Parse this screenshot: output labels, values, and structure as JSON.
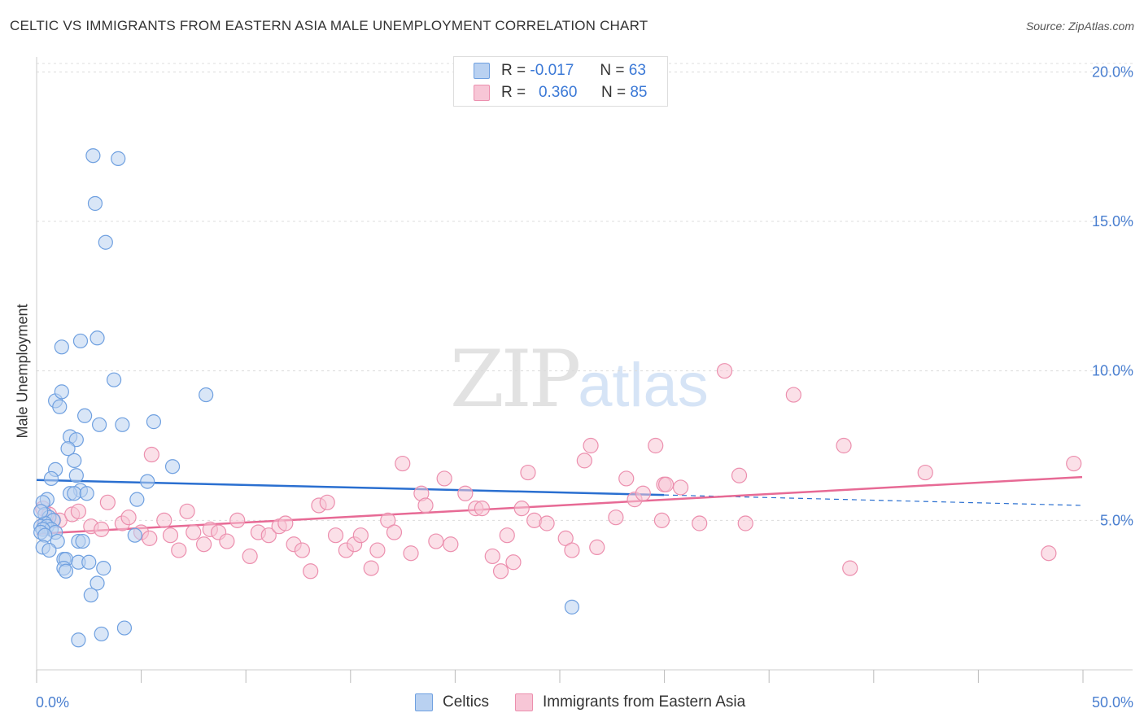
{
  "title": "CELTIC VS IMMIGRANTS FROM EASTERN ASIA MALE UNEMPLOYMENT CORRELATION CHART",
  "source": "Source: ZipAtlas.com",
  "watermark": {
    "zip": "ZIP",
    "atlas": "atlas"
  },
  "legend": {
    "row1": {
      "r_label": "R =",
      "r_value": "-0.017",
      "n_label": "N =",
      "n_value": "63"
    },
    "row2": {
      "r_label": "R =",
      "r_value": "0.360",
      "n_label": "N =",
      "n_value": "85"
    }
  },
  "colors": {
    "celtics": "#6fa0e0",
    "celtics_fill": "#b9d1f1",
    "asia": "#ec8fae",
    "asia_fill": "#f7c6d6",
    "celtics_line": "#2a6fd0",
    "asia_line": "#e76a95"
  },
  "chart_data": {
    "type": "scatter",
    "title": "CELTIC VS IMMIGRANTS FROM EASTERN ASIA MALE UNEMPLOYMENT CORRELATION CHART",
    "xlabel": "",
    "ylabel": "Male Unemployment",
    "xlim": [
      0,
      50
    ],
    "ylim": [
      0,
      20.5
    ],
    "x_tick_labels": [
      "0.0%",
      "50.0%"
    ],
    "y_ticks": [
      5,
      10,
      15,
      20
    ],
    "y_tick_labels": [
      "5.0%",
      "10.0%",
      "15.0%",
      "20.0%"
    ],
    "grid": true,
    "legend_position": "top-center",
    "series": [
      {
        "name": "Celtics",
        "r": -0.017,
        "n": 63,
        "trend": {
          "x": [
            0,
            30
          ],
          "y": [
            6.35,
            5.85
          ],
          "dashed_to": [
            50,
            5.5
          ]
        },
        "points": [
          [
            2.7,
            17.2
          ],
          [
            3.9,
            17.1
          ],
          [
            2.8,
            15.6
          ],
          [
            3.3,
            14.3
          ],
          [
            1.2,
            10.8
          ],
          [
            2.1,
            11.0
          ],
          [
            2.9,
            11.1
          ],
          [
            3.7,
            9.7
          ],
          [
            8.1,
            9.2
          ],
          [
            0.9,
            9.0
          ],
          [
            1.2,
            9.3
          ],
          [
            1.1,
            8.8
          ],
          [
            2.3,
            8.5
          ],
          [
            3.0,
            8.2
          ],
          [
            4.1,
            8.2
          ],
          [
            5.6,
            8.3
          ],
          [
            1.6,
            7.8
          ],
          [
            1.9,
            7.7
          ],
          [
            1.5,
            7.4
          ],
          [
            1.8,
            7.0
          ],
          [
            0.9,
            6.7
          ],
          [
            6.5,
            6.8
          ],
          [
            0.7,
            6.4
          ],
          [
            1.9,
            6.5
          ],
          [
            5.3,
            6.3
          ],
          [
            2.1,
            6.0
          ],
          [
            1.6,
            5.9
          ],
          [
            1.8,
            5.9
          ],
          [
            2.4,
            5.9
          ],
          [
            4.8,
            5.7
          ],
          [
            0.5,
            5.7
          ],
          [
            0.3,
            5.6
          ],
          [
            0.4,
            5.2
          ],
          [
            0.6,
            5.1
          ],
          [
            0.8,
            5.0
          ],
          [
            0.4,
            4.9
          ],
          [
            0.2,
            4.8
          ],
          [
            0.5,
            4.8
          ],
          [
            0.7,
            4.7
          ],
          [
            0.3,
            4.7
          ],
          [
            0.2,
            4.6
          ],
          [
            0.9,
            4.6
          ],
          [
            0.4,
            4.5
          ],
          [
            4.7,
            4.5
          ],
          [
            1.0,
            4.3
          ],
          [
            2.0,
            4.3
          ],
          [
            2.2,
            4.3
          ],
          [
            0.3,
            4.1
          ],
          [
            0.6,
            4.0
          ],
          [
            1.3,
            3.7
          ],
          [
            1.4,
            3.7
          ],
          [
            2.0,
            3.6
          ],
          [
            2.5,
            3.6
          ],
          [
            1.3,
            3.4
          ],
          [
            1.4,
            3.3
          ],
          [
            3.2,
            3.4
          ],
          [
            2.9,
            2.9
          ],
          [
            2.6,
            2.5
          ],
          [
            25.6,
            2.1
          ],
          [
            4.2,
            1.4
          ],
          [
            3.1,
            1.2
          ],
          [
            2.0,
            1.0
          ],
          [
            0.2,
            5.3
          ]
        ]
      },
      {
        "name": "Immigrants from Eastern Asia",
        "r": 0.36,
        "n": 85,
        "trend": {
          "x": [
            0,
            50
          ],
          "y": [
            4.55,
            6.45
          ]
        },
        "points": [
          [
            0.3,
            5.4
          ],
          [
            0.6,
            5.2
          ],
          [
            0.8,
            5.0
          ],
          [
            0.4,
            4.9
          ],
          [
            1.1,
            5.0
          ],
          [
            1.7,
            5.2
          ],
          [
            2.0,
            5.3
          ],
          [
            2.6,
            4.8
          ],
          [
            3.1,
            4.7
          ],
          [
            3.4,
            5.6
          ],
          [
            4.1,
            4.9
          ],
          [
            4.4,
            5.1
          ],
          [
            5.0,
            4.6
          ],
          [
            5.4,
            4.4
          ],
          [
            5.5,
            7.2
          ],
          [
            6.1,
            5.0
          ],
          [
            6.4,
            4.5
          ],
          [
            6.8,
            4.0
          ],
          [
            7.2,
            5.3
          ],
          [
            7.5,
            4.6
          ],
          [
            8.0,
            4.2
          ],
          [
            8.3,
            4.7
          ],
          [
            8.7,
            4.6
          ],
          [
            9.1,
            4.3
          ],
          [
            9.6,
            5.0
          ],
          [
            10.2,
            3.8
          ],
          [
            10.6,
            4.6
          ],
          [
            11.1,
            4.5
          ],
          [
            11.6,
            4.8
          ],
          [
            11.9,
            4.9
          ],
          [
            12.3,
            4.2
          ],
          [
            12.7,
            4.0
          ],
          [
            13.1,
            3.3
          ],
          [
            13.5,
            5.5
          ],
          [
            13.9,
            5.6
          ],
          [
            14.3,
            4.5
          ],
          [
            14.8,
            4.0
          ],
          [
            15.2,
            4.2
          ],
          [
            15.5,
            4.5
          ],
          [
            16.0,
            3.4
          ],
          [
            16.3,
            4.0
          ],
          [
            16.8,
            5.0
          ],
          [
            17.1,
            4.6
          ],
          [
            17.5,
            6.9
          ],
          [
            17.9,
            3.9
          ],
          [
            18.4,
            5.9
          ],
          [
            18.6,
            5.5
          ],
          [
            19.1,
            4.3
          ],
          [
            19.5,
            6.4
          ],
          [
            19.8,
            4.2
          ],
          [
            20.5,
            5.9
          ],
          [
            21.0,
            5.4
          ],
          [
            21.3,
            5.4
          ],
          [
            21.8,
            3.8
          ],
          [
            22.2,
            3.3
          ],
          [
            22.5,
            4.5
          ],
          [
            22.8,
            3.6
          ],
          [
            23.2,
            5.4
          ],
          [
            23.5,
            6.6
          ],
          [
            23.8,
            5.0
          ],
          [
            24.4,
            4.9
          ],
          [
            25.3,
            4.4
          ],
          [
            25.6,
            4.0
          ],
          [
            26.2,
            7.0
          ],
          [
            26.5,
            7.5
          ],
          [
            26.8,
            4.1
          ],
          [
            27.7,
            5.1
          ],
          [
            28.2,
            6.4
          ],
          [
            28.6,
            5.7
          ],
          [
            29.0,
            5.9
          ],
          [
            29.6,
            7.5
          ],
          [
            29.9,
            5.0
          ],
          [
            30.0,
            6.2
          ],
          [
            30.1,
            6.2
          ],
          [
            30.8,
            6.1
          ],
          [
            31.7,
            4.9
          ],
          [
            32.9,
            10.0
          ],
          [
            33.6,
            6.5
          ],
          [
            33.9,
            4.9
          ],
          [
            36.2,
            9.2
          ],
          [
            38.6,
            7.5
          ],
          [
            38.9,
            3.4
          ],
          [
            42.5,
            6.6
          ],
          [
            48.4,
            3.9
          ],
          [
            49.6,
            6.9
          ]
        ]
      }
    ]
  },
  "bottom_legend": {
    "celtics": "Celtics",
    "asia": "Immigrants from Eastern Asia"
  }
}
